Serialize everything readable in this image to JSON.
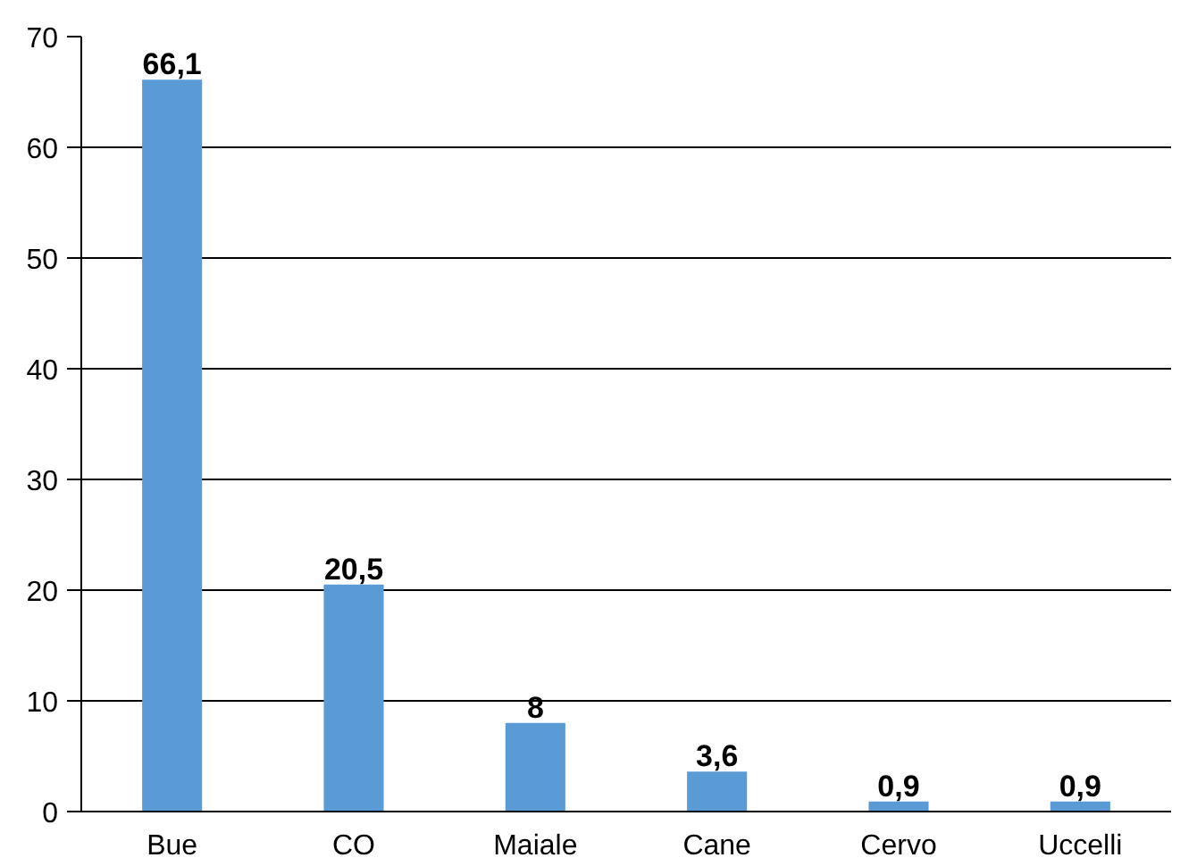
{
  "chart_data": {
    "type": "bar",
    "categories": [
      "Bue",
      "CO",
      "Maiale",
      "Cane",
      "Cervo",
      "Uccelli"
    ],
    "values": [
      66.1,
      20.5,
      8,
      3.6,
      0.9,
      0.9
    ],
    "value_labels": [
      "66,1",
      "20,5",
      "8",
      "3,6",
      "0,9",
      "0,9"
    ],
    "color": "#5b9bd5",
    "ylim": [
      0,
      70
    ],
    "yticks": [
      0,
      10,
      20,
      30,
      40,
      50,
      60,
      70
    ],
    "grid": "y"
  }
}
